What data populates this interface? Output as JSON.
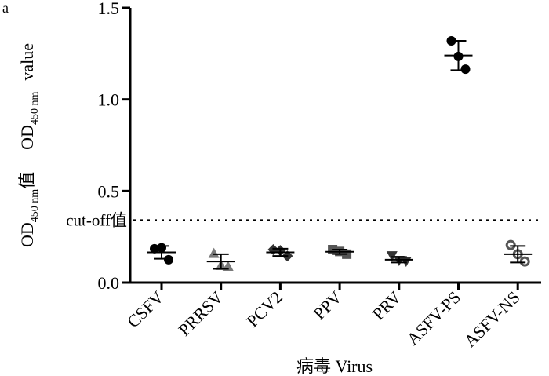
{
  "panel_label": "a",
  "chart_data": {
    "type": "scatter",
    "ylabel": "OD450 nm值　OD450 nm value",
    "ylabel_parts": {
      "cn_prefix": "OD",
      "cn_sub": "450 nm",
      "cn_suffix": "值",
      "en_prefix": "OD",
      "en_sub": "450 nm",
      "en_suffix": "value"
    },
    "xlabel": "病毒  Virus",
    "ylim": [
      0,
      1.5
    ],
    "yticks": [
      "0.0",
      "0.5",
      "1.0",
      "1.5"
    ],
    "categories": [
      "CSFV",
      "PRRSV",
      "PCV2",
      "PPV",
      "PRV",
      "ASFV-PS",
      "ASFV-NS"
    ],
    "cutoff": {
      "label": "cut-off值",
      "value": 0.34
    },
    "series": [
      {
        "category": "CSFV",
        "marker": "circle-filled",
        "color": "#000000",
        "points": [
          0.185,
          0.19,
          0.125
        ],
        "mean": 0.165,
        "sd": 0.035
      },
      {
        "category": "PRRSV",
        "marker": "triangle-up",
        "color": "#7a7a7a",
        "points": [
          0.16,
          0.095,
          0.09
        ],
        "mean": 0.115,
        "sd": 0.04
      },
      {
        "category": "PCV2",
        "marker": "diamond",
        "color": "#333333",
        "points": [
          0.18,
          0.175,
          0.145
        ],
        "mean": 0.165,
        "sd": 0.02
      },
      {
        "category": "PPV",
        "marker": "square",
        "color": "#555555",
        "points": [
          0.18,
          0.17,
          0.155
        ],
        "mean": 0.168,
        "sd": 0.012
      },
      {
        "category": "PRV",
        "marker": "triangle-down",
        "color": "#333333",
        "points": [
          0.145,
          0.12,
          0.115
        ],
        "mean": 0.125,
        "sd": 0.015
      },
      {
        "category": "ASFV-PS",
        "marker": "circle-filled",
        "color": "#000000",
        "points": [
          1.32,
          1.235,
          1.165
        ],
        "mean": 1.24,
        "sd": 0.08
      },
      {
        "category": "ASFV-NS",
        "marker": "circle-open",
        "color": "#555555",
        "points": [
          0.205,
          0.155,
          0.115
        ],
        "mean": 0.155,
        "sd": 0.045
      }
    ],
    "grid": false,
    "legend": "none"
  }
}
